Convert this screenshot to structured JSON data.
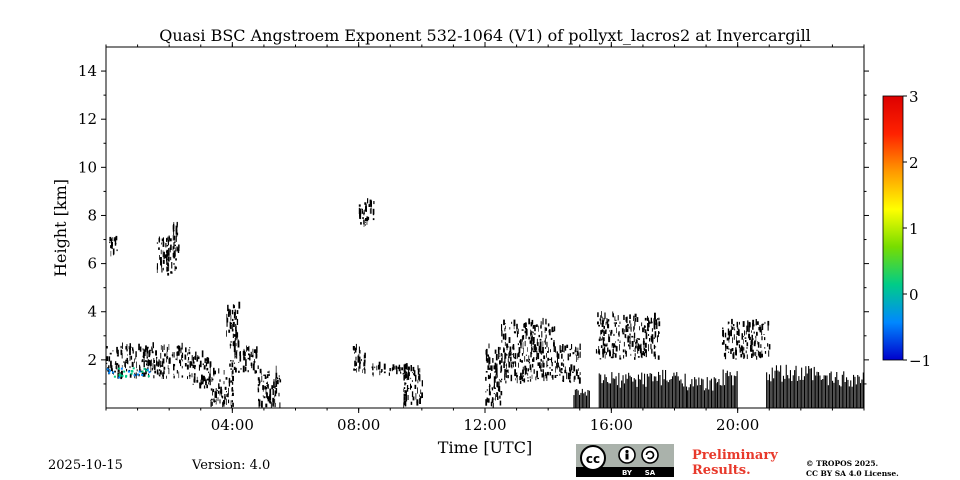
{
  "chart_data": {
    "type": "heatmap",
    "title": "Quasi BSC Angstroem Exponent 532-1064 (V1) of pollyxt_lacros2 at Invercargill",
    "xlabel": "Time [UTC]",
    "ylabel": "Height [km]",
    "x_unit": "hours UTC",
    "xlim": [
      0,
      24
    ],
    "ylim": [
      0,
      15
    ],
    "x_ticks": [
      {
        "value": 4,
        "label": "04:00"
      },
      {
        "value": 8,
        "label": "08:00"
      },
      {
        "value": 12,
        "label": "12:00"
      },
      {
        "value": 16,
        "label": "16:00"
      },
      {
        "value": 20,
        "label": "20:00"
      }
    ],
    "y_ticks": [
      {
        "value": 2,
        "label": "2"
      },
      {
        "value": 4,
        "label": "4"
      },
      {
        "value": 6,
        "label": "6"
      },
      {
        "value": 8,
        "label": "8"
      },
      {
        "value": 10,
        "label": "10"
      },
      {
        "value": 12,
        "label": "12"
      },
      {
        "value": 14,
        "label": "14"
      }
    ],
    "colorbar": {
      "min": -1,
      "max": 3,
      "ticks": [
        {
          "value": 3,
          "label": "3"
        },
        {
          "value": 2,
          "label": "2"
        },
        {
          "value": 1,
          "label": "1"
        },
        {
          "value": 0,
          "label": "0"
        },
        {
          "value": -1,
          "label": "−1"
        }
      ],
      "colors": [
        "#0000cc",
        "#0088ff",
        "#00cc88",
        "#77dd00",
        "#ffff00",
        "#ff9900",
        "#ff2200",
        "#dd0000"
      ]
    },
    "regions": [
      {
        "t0": 0.0,
        "t1": 2.7,
        "h0": 1.2,
        "h1": 2.5
      },
      {
        "t0": 2.7,
        "t1": 3.3,
        "h0": 0.8,
        "h1": 2.2
      },
      {
        "t0": 3.3,
        "t1": 4.0,
        "h0": 0.0,
        "h1": 1.5
      },
      {
        "t0": 3.9,
        "t1": 4.8,
        "h0": 1.4,
        "h1": 2.4
      },
      {
        "t0": 4.8,
        "t1": 5.5,
        "h0": 0.0,
        "h1": 1.5
      },
      {
        "t0": 0.1,
        "t1": 0.35,
        "h0": 6.3,
        "h1": 7.0
      },
      {
        "t0": 1.6,
        "t1": 2.2,
        "h0": 5.5,
        "h1": 7.0
      },
      {
        "t0": 2.1,
        "t1": 2.3,
        "h0": 6.2,
        "h1": 7.6
      },
      {
        "t0": 8.0,
        "t1": 8.5,
        "h0": 7.5,
        "h1": 8.5
      },
      {
        "t0": 3.8,
        "t1": 4.2,
        "h0": 2.4,
        "h1": 4.2
      },
      {
        "t0": 7.8,
        "t1": 8.2,
        "h0": 1.4,
        "h1": 2.5
      },
      {
        "t0": 8.4,
        "t1": 9.6,
        "h0": 1.3,
        "h1": 1.7
      },
      {
        "t0": 9.4,
        "t1": 10.0,
        "h0": 0.0,
        "h1": 1.6
      },
      {
        "t0": 12.0,
        "t1": 12.5,
        "h0": 0.0,
        "h1": 2.5
      },
      {
        "t0": 12.5,
        "t1": 14.2,
        "h0": 1.0,
        "h1": 3.5
      },
      {
        "t0": 14.2,
        "t1": 15.0,
        "h0": 1.0,
        "h1": 2.5
      },
      {
        "t0": 15.5,
        "t1": 17.5,
        "h0": 2.0,
        "h1": 3.8
      },
      {
        "t0": 19.5,
        "t1": 21.0,
        "h0": 2.0,
        "h1": 3.5
      }
    ],
    "ground": [
      {
        "t0": 14.8,
        "t1": 15.3,
        "h": 0.8
      },
      {
        "t0": 15.6,
        "t1": 16.9,
        "h": 1.5
      },
      {
        "t0": 16.9,
        "t1": 18.4,
        "h": 1.6
      },
      {
        "t0": 18.4,
        "t1": 19.3,
        "h": 1.3
      },
      {
        "t0": 19.3,
        "t1": 20.0,
        "h": 1.6
      },
      {
        "t0": 20.9,
        "t1": 22.5,
        "h": 1.8
      },
      {
        "t0": 22.5,
        "t1": 24.0,
        "h": 1.6
      }
    ],
    "low_values": {
      "t0": 0.0,
      "t1": 1.5,
      "h0": 1.3,
      "h1": 1.7
    }
  },
  "footer": {
    "date": "2025-10-15",
    "version": "Version: 4.0",
    "preliminary_line1": "Preliminary",
    "preliminary_line2": "Results.",
    "copyright_line1": "© TROPOS 2025.",
    "copyright_line2": "CC BY SA 4.0 License.",
    "badge_by": "BY",
    "badge_sa": "SA"
  }
}
